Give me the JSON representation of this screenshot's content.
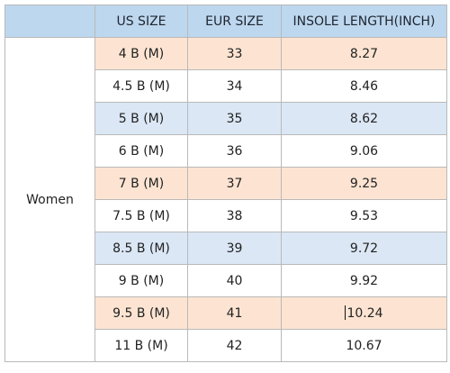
{
  "table": {
    "headers": [
      "",
      "US SIZE",
      "EUR SIZE",
      "INSOLE LENGTH(INCH)"
    ],
    "category": "Women",
    "rows": [
      {
        "us": "4 B (M)",
        "eur": "33",
        "insole": "8.27",
        "tint": "peach"
      },
      {
        "us": "4.5 B (M)",
        "eur": "34",
        "insole": "8.46",
        "tint": "none"
      },
      {
        "us": "5 B (M)",
        "eur": "35",
        "insole": "8.62",
        "tint": "blue"
      },
      {
        "us": "6 B (M)",
        "eur": "36",
        "insole": "9.06",
        "tint": "none"
      },
      {
        "us": "7 B (M)",
        "eur": "37",
        "insole": "9.25",
        "tint": "peach"
      },
      {
        "us": "7.5 B (M)",
        "eur": "38",
        "insole": "9.53",
        "tint": "none"
      },
      {
        "us": "8.5 B (M)",
        "eur": "39",
        "insole": "9.72",
        "tint": "blue"
      },
      {
        "us": "9 B (M)",
        "eur": "40",
        "insole": "9.92",
        "tint": "none"
      },
      {
        "us": "9.5 B (M)",
        "eur": "41",
        "insole": "10.24",
        "tint": "peach"
      },
      {
        "us": "11 B (M)",
        "eur": "42",
        "insole": "10.67",
        "tint": "none"
      }
    ]
  },
  "colors": {
    "header_bg": "#bdd7ee",
    "peach_row": "#fde4d2",
    "blue_row": "#dbe7f5",
    "grid": "#b9b9b9"
  }
}
